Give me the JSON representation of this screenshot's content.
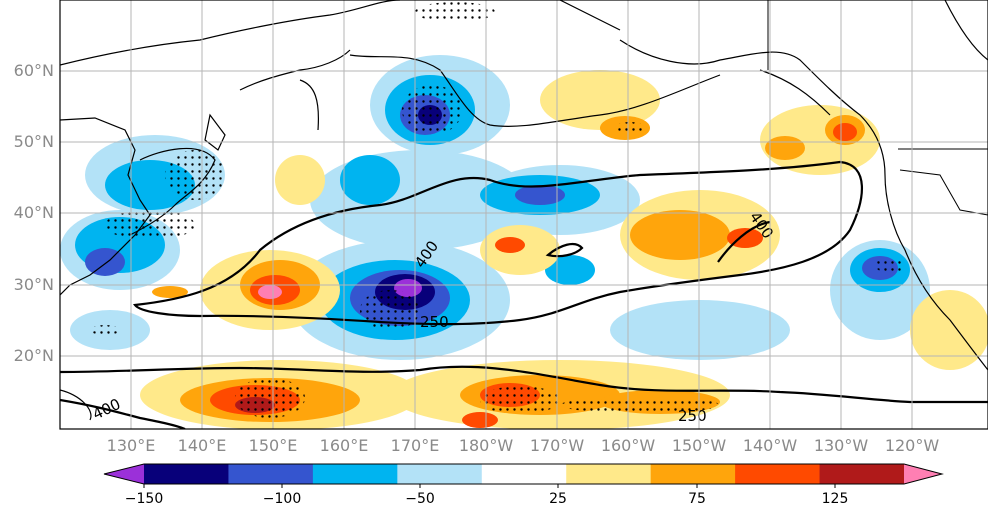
{
  "map": {
    "lat_labels": [
      "60°N",
      "50°N",
      "40°N",
      "30°N",
      "20°N"
    ],
    "lon_labels": [
      "130°E",
      "140°E",
      "150°E",
      "160°E",
      "170°E",
      "180°W",
      "170°W",
      "160°W",
      "150°W",
      "140°W",
      "130°W",
      "120°W"
    ],
    "contour_labels": [
      "400",
      "400",
      "250",
      "400",
      "250"
    ]
  },
  "colorbar": {
    "tick_labels": [
      "−150",
      "−100",
      "−50",
      "25",
      "75",
      "125"
    ],
    "colors": [
      "#9b30d9",
      "#08007a",
      "#3555cf",
      "#00b4f0",
      "#b3e2f7",
      "#ffffff",
      "#ffe98a",
      "#ffa50c",
      "#ff4a00",
      "#b01a1a",
      "#ff7fb3"
    ]
  }
}
